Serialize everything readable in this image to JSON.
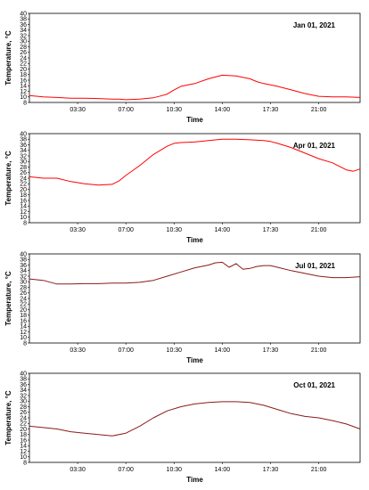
{
  "chart_data": [
    {
      "type": "line",
      "annotation": "Jan 01, 2021",
      "xlabel": "Time",
      "ylabel": "Temperature, °C",
      "ylim": [
        8,
        40
      ],
      "yticks": [
        8,
        10,
        12,
        14,
        16,
        18,
        20,
        22,
        24,
        26,
        28,
        30,
        32,
        34,
        36,
        38,
        40
      ],
      "xlim": [
        "00:00",
        "24:00"
      ],
      "xticks": [
        "03:30",
        "07:00",
        "10:30",
        "14:00",
        "17:30",
        "21:00"
      ],
      "grid": false,
      "color": "#ff0000",
      "series": [
        {
          "x": [
            "00:00",
            "01:00",
            "02:00",
            "03:00",
            "04:00",
            "05:00",
            "06:00",
            "06:30",
            "07:00",
            "08:00",
            "09:00",
            "09:30",
            "10:00",
            "10:30",
            "11:00",
            "12:00",
            "13:00",
            "14:00",
            "15:00",
            "16:00",
            "16:30",
            "17:00",
            "17:30",
            "18:00",
            "19:00",
            "20:00",
            "21:00",
            "22:00",
            "23:00",
            "24:00"
          ],
          "y": [
            10.5,
            10.0,
            9.8,
            9.5,
            9.5,
            9.4,
            9.2,
            9.2,
            9.0,
            9.2,
            9.7,
            10.3,
            11.0,
            12.5,
            13.8,
            14.8,
            16.5,
            17.8,
            17.5,
            16.5,
            15.5,
            14.8,
            14.3,
            13.8,
            12.5,
            11.2,
            10.2,
            10.0,
            10.0,
            9.8
          ]
        }
      ]
    },
    {
      "type": "line",
      "annotation": "Apr 01, 2021",
      "xlabel": "Time",
      "ylabel": "Temperature, °C",
      "ylim": [
        8,
        40
      ],
      "yticks": [
        8,
        10,
        12,
        14,
        16,
        18,
        20,
        22,
        24,
        26,
        28,
        30,
        32,
        34,
        36,
        38,
        40
      ],
      "xlim": [
        "00:00",
        "24:00"
      ],
      "xticks": [
        "03:30",
        "07:00",
        "10:30",
        "14:00",
        "17:30",
        "21:00"
      ],
      "grid": false,
      "color": "#ff0000",
      "series": [
        {
          "x": [
            "00:00",
            "01:00",
            "02:00",
            "03:00",
            "04:00",
            "05:00",
            "06:00",
            "06:30",
            "07:00",
            "08:00",
            "09:00",
            "10:00",
            "10:30",
            "11:00",
            "12:00",
            "13:00",
            "14:00",
            "15:00",
            "16:00",
            "17:00",
            "17:30",
            "18:00",
            "19:00",
            "20:00",
            "21:00",
            "22:00",
            "23:00",
            "23:30",
            "24:00"
          ],
          "y": [
            24.5,
            24.0,
            24.0,
            22.8,
            22.0,
            21.5,
            21.8,
            23.0,
            25.0,
            28.5,
            32.5,
            35.5,
            36.5,
            36.8,
            37.0,
            37.5,
            38.0,
            38.0,
            37.8,
            37.5,
            37.2,
            36.5,
            35.0,
            33.0,
            31.0,
            29.5,
            27.0,
            26.5,
            27.3
          ]
        }
      ]
    },
    {
      "type": "line",
      "annotation": "Jul 01, 2021",
      "xlabel": "Time",
      "ylabel": "Temperature, °C",
      "ylim": [
        8,
        40
      ],
      "yticks": [
        8,
        10,
        12,
        14,
        16,
        18,
        20,
        22,
        24,
        26,
        28,
        30,
        32,
        34,
        36,
        38,
        40
      ],
      "xlim": [
        "00:00",
        "24:00"
      ],
      "xticks": [
        "03:30",
        "07:00",
        "10:30",
        "14:00",
        "17:30",
        "21:00"
      ],
      "grid": false,
      "color": "#8b1a1a",
      "series": [
        {
          "x": [
            "00:00",
            "01:00",
            "02:00",
            "03:00",
            "04:00",
            "05:00",
            "06:00",
            "07:00",
            "08:00",
            "09:00",
            "10:00",
            "11:00",
            "12:00",
            "13:00",
            "13:30",
            "14:00",
            "14:30",
            "15:00",
            "15:30",
            "16:00",
            "16:30",
            "17:00",
            "17:30",
            "18:00",
            "19:00",
            "20:00",
            "21:00",
            "22:00",
            "23:00",
            "24:00"
          ],
          "y": [
            31.0,
            30.5,
            29.2,
            29.2,
            29.3,
            29.3,
            29.5,
            29.5,
            29.8,
            30.5,
            32.0,
            33.5,
            35.0,
            36.0,
            36.8,
            37.0,
            35.2,
            36.5,
            34.5,
            34.8,
            35.5,
            35.8,
            35.8,
            35.2,
            34.0,
            33.0,
            32.0,
            31.5,
            31.5,
            31.8
          ]
        }
      ]
    },
    {
      "type": "line",
      "annotation": "Oct 01, 2021",
      "xlabel": "Time",
      "ylabel": "Temperature, °C",
      "ylim": [
        8,
        40
      ],
      "yticks": [
        8,
        10,
        12,
        14,
        16,
        18,
        20,
        22,
        24,
        26,
        28,
        30,
        32,
        34,
        36,
        38,
        40
      ],
      "xlim": [
        "00:00",
        "24:00"
      ],
      "xticks": [
        "03:30",
        "07:00",
        "10:30",
        "14:00",
        "17:30",
        "21:00"
      ],
      "grid": false,
      "color": "#8b1a1a",
      "series": [
        {
          "x": [
            "00:00",
            "01:00",
            "02:00",
            "03:00",
            "04:00",
            "05:00",
            "06:00",
            "07:00",
            "08:00",
            "09:00",
            "10:00",
            "11:00",
            "12:00",
            "13:00",
            "14:00",
            "15:00",
            "16:00",
            "17:00",
            "18:00",
            "19:00",
            "20:00",
            "21:00",
            "22:00",
            "23:00",
            "24:00"
          ],
          "y": [
            21.0,
            20.5,
            20.0,
            19.0,
            18.5,
            18.0,
            17.5,
            18.5,
            21.0,
            24.0,
            26.5,
            28.0,
            29.0,
            29.5,
            29.8,
            29.8,
            29.5,
            28.5,
            27.0,
            25.5,
            24.5,
            24.0,
            23.0,
            21.8,
            20.0
          ]
        }
      ]
    }
  ]
}
